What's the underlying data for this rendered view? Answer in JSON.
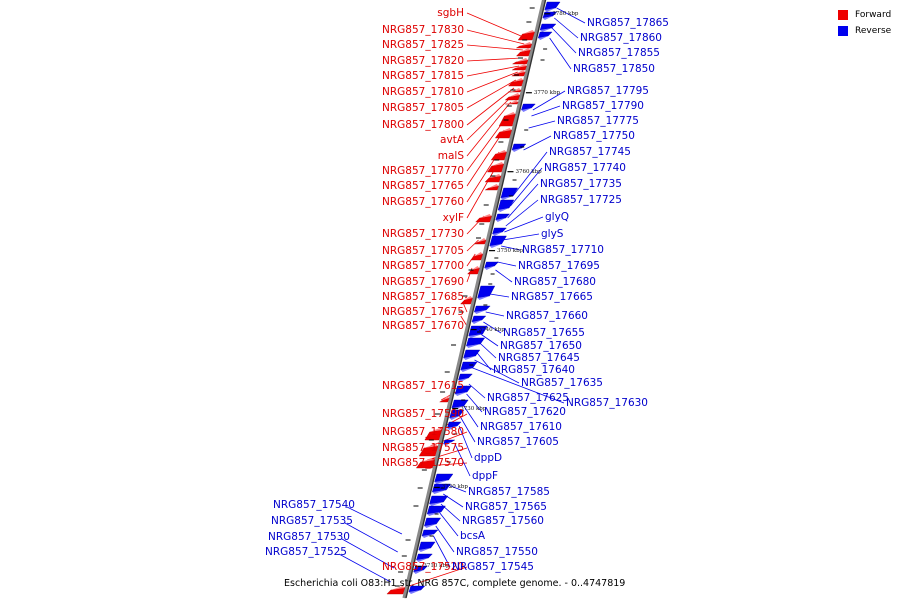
{
  "legend": [
    {
      "label": "Forward",
      "color": "#ee0000"
    },
    {
      "label": "Reverse",
      "color": "#0000ee"
    }
  ],
  "caption": "Escherichia coli O83:H1 str. NRG 857C, complete genome. - 0..4747819",
  "axis": {
    "start_kbp": 3706,
    "end_kbp": 3782,
    "ticks": [
      {
        "kbp": 3710,
        "label": "3710 kbp"
      },
      {
        "kbp": 3720,
        "label": "3720 kbp"
      },
      {
        "kbp": 3730,
        "label": "3730 kbp"
      },
      {
        "kbp": 3740,
        "label": "3740 kbp"
      },
      {
        "kbp": 3750,
        "label": "3750 kbp"
      },
      {
        "kbp": 3760,
        "label": "3760 kbp"
      },
      {
        "kbp": 3770,
        "label": "3770 kbp"
      },
      {
        "kbp": 3780,
        "label": "3780 kbp"
      }
    ]
  },
  "forward_labels": [
    "sgbH",
    "NRG857_17830",
    "NRG857_17825",
    "NRG857_17820",
    "NRG857_17815",
    "NRG857_17810",
    "NRG857_17805",
    "NRG857_17800",
    "avtA",
    "malS",
    "NRG857_17770",
    "NRG857_17765",
    "NRG857_17760",
    "xylF",
    "NRG857_17730",
    "NRG857_17705",
    "NRG857_17700",
    "NRG857_17690",
    "NRG857_17685",
    "NRG857_17675",
    "NRG857_17670",
    "NRG857_17615",
    "NRG857_17590",
    "NRG857_17580",
    "NRG857_17575",
    "NRG857_17570",
    "NRG857_17520"
  ],
  "reverse_labels": [
    "NRG857_17865",
    "NRG857_17860",
    "NRG857_17855",
    "NRG857_17850",
    "NRG857_17795",
    "NRG857_17790",
    "NRG857_17775",
    "NRG857_17750",
    "NRG857_17745",
    "NRG857_17740",
    "NRG857_17735",
    "NRG857_17725",
    "glyQ",
    "glyS",
    "NRG857_17710",
    "NRG857_17695",
    "NRG857_17680",
    "NRG857_17665",
    "NRG857_17660",
    "NRG857_17655",
    "NRG857_17650",
    "NRG857_17645",
    "NRG857_17640",
    "NRG857_17635",
    "NRG857_17630",
    "NRG857_17625",
    "NRG857_17620",
    "NRG857_17610",
    "NRG857_17605",
    "dppD",
    "dppF",
    "NRG857_17585",
    "NRG857_17565",
    "NRG857_17560",
    "bcsA",
    "NRG857_17550",
    "NRG857_17545",
    "NRG857_17540",
    "NRG857_17535",
    "NRG857_17530",
    "NRG857_17525"
  ]
}
